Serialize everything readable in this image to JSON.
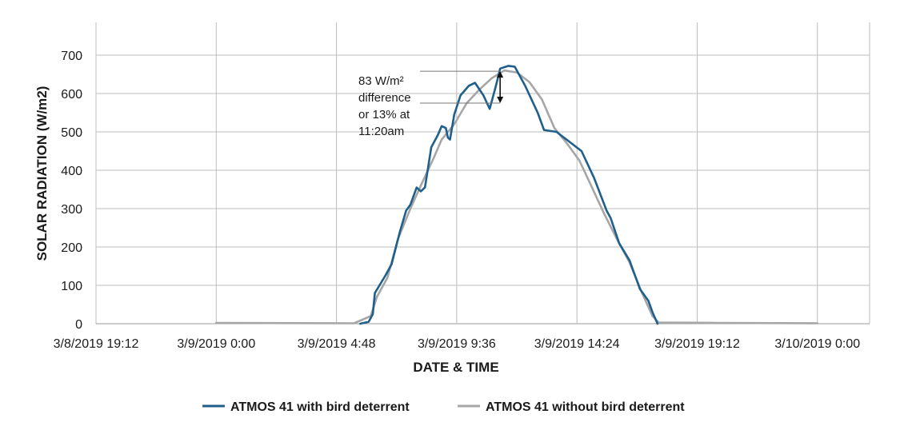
{
  "chart_data": {
    "type": "line",
    "title": "",
    "xlabel": "DATE & TIME",
    "ylabel": "SOLAR RADIATION (W/m2)",
    "ylim": [
      0,
      700
    ],
    "y_ticks": [
      0,
      100,
      200,
      300,
      400,
      500,
      600,
      700
    ],
    "x_ticks": [
      "3/8/2019 19:12",
      "3/9/2019 0:00",
      "3/9/2019 4:48",
      "3/9/2019 9:36",
      "3/9/2019 14:24",
      "3/9/2019 19:12",
      "3/10/2019 0:00"
    ],
    "x_range": [
      "3/8/2019 19:12",
      "3/10/2019 2:05"
    ],
    "grid": true,
    "legend_position": "bottom",
    "series": [
      {
        "name": "ATMOS 41 with bird deterrent",
        "color": "#1f5f8b",
        "points": [
          [
            "3/9/2019 5:45",
            0
          ],
          [
            "3/9/2019 6:05",
            5
          ],
          [
            "3/9/2019 6:15",
            25
          ],
          [
            "3/9/2019 6:20",
            80
          ],
          [
            "3/9/2019 6:45",
            125
          ],
          [
            "3/9/2019 7:00",
            155
          ],
          [
            "3/9/2019 7:20",
            240
          ],
          [
            "3/9/2019 7:35",
            295
          ],
          [
            "3/9/2019 7:45",
            310
          ],
          [
            "3/9/2019 8:00",
            355
          ],
          [
            "3/9/2019 8:10",
            345
          ],
          [
            "3/9/2019 8:20",
            355
          ],
          [
            "3/9/2019 8:35",
            460
          ],
          [
            "3/9/2019 8:50",
            490
          ],
          [
            "3/9/2019 9:00",
            515
          ],
          [
            "3/9/2019 9:10",
            510
          ],
          [
            "3/9/2019 9:15",
            485
          ],
          [
            "3/9/2019 9:20",
            480
          ],
          [
            "3/9/2019 9:30",
            545
          ],
          [
            "3/9/2019 9:45",
            595
          ],
          [
            "3/9/2019 10:05",
            620
          ],
          [
            "3/9/2019 10:20",
            628
          ],
          [
            "3/9/2019 10:40",
            595
          ],
          [
            "3/9/2019 10:55",
            560
          ],
          [
            "3/9/2019 11:10",
            620
          ],
          [
            "3/9/2019 11:20",
            665
          ],
          [
            "3/9/2019 11:40",
            672
          ],
          [
            "3/9/2019 11:55",
            670
          ],
          [
            "3/9/2019 12:20",
            620
          ],
          [
            "3/9/2019 12:50",
            550
          ],
          [
            "3/9/2019 13:05",
            505
          ],
          [
            "3/9/2019 13:35",
            500
          ],
          [
            "3/9/2019 14:05",
            475
          ],
          [
            "3/9/2019 14:35",
            450
          ],
          [
            "3/9/2019 15:05",
            380
          ],
          [
            "3/9/2019 15:35",
            295
          ],
          [
            "3/9/2019 15:45",
            275
          ],
          [
            "3/9/2019 16:05",
            210
          ],
          [
            "3/9/2019 16:30",
            165
          ],
          [
            "3/9/2019 16:55",
            90
          ],
          [
            "3/9/2019 17:15",
            60
          ],
          [
            "3/9/2019 17:25",
            30
          ],
          [
            "3/9/2019 17:37",
            0
          ]
        ]
      },
      {
        "name": "ATMOS 41 without bird deterrent",
        "color": "#a6a6a6",
        "points": [
          [
            "3/9/2019 0:00",
            2
          ],
          [
            "3/9/2019 5:30",
            1
          ],
          [
            "3/9/2019 6:10",
            20
          ],
          [
            "3/9/2019 6:25",
            70
          ],
          [
            "3/9/2019 6:50",
            120
          ],
          [
            "3/9/2019 7:15",
            220
          ],
          [
            "3/9/2019 7:45",
            300
          ],
          [
            "3/9/2019 8:10",
            360
          ],
          [
            "3/9/2019 8:40",
            430
          ],
          [
            "3/9/2019 9:00",
            480
          ],
          [
            "3/9/2019 9:30",
            520
          ],
          [
            "3/9/2019 10:00",
            575
          ],
          [
            "3/9/2019 10:30",
            610
          ],
          [
            "3/9/2019 11:00",
            640
          ],
          [
            "3/9/2019 11:30",
            660
          ],
          [
            "3/9/2019 12:00",
            655
          ],
          [
            "3/9/2019 12:30",
            630
          ],
          [
            "3/9/2019 13:00",
            585
          ],
          [
            "3/9/2019 13:30",
            510
          ],
          [
            "3/9/2019 14:00",
            470
          ],
          [
            "3/9/2019 14:30",
            425
          ],
          [
            "3/9/2019 15:00",
            355
          ],
          [
            "3/9/2019 15:30",
            285
          ],
          [
            "3/9/2019 16:00",
            220
          ],
          [
            "3/9/2019 16:30",
            160
          ],
          [
            "3/9/2019 17:00",
            80
          ],
          [
            "3/9/2019 17:25",
            20
          ],
          [
            "3/9/2019 17:40",
            3
          ],
          [
            "3/9/2019 20:00",
            2
          ],
          [
            "3/10/2019 0:00",
            1
          ]
        ]
      }
    ],
    "annotation": {
      "lines": [
        "83 W/m²",
        "difference",
        "or 13% at",
        "11:20am"
      ],
      "time": "3/9/2019 11:20",
      "from": 658,
      "to": 575
    }
  }
}
